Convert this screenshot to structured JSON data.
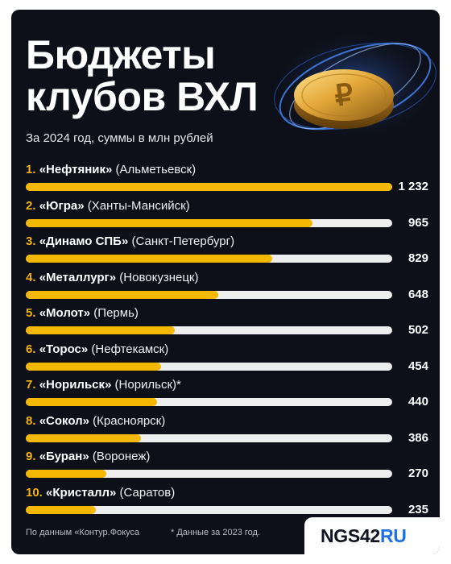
{
  "header": {
    "title_line1": "Бюджеты",
    "title_line2": "клубов ВХЛ",
    "subtitle": "За 2024 год, суммы в млн рублей"
  },
  "colors": {
    "background": "#0d1019",
    "bar": "#f5b800",
    "track": "#eeeeee",
    "rank": "#f4b400"
  },
  "icons": {
    "coin": "ruble-coin-icon"
  },
  "chart_data": {
    "type": "bar",
    "orientation": "horizontal",
    "title": "Бюджеты клубов ВХЛ",
    "subtitle": "За 2024 год, суммы в млн рублей",
    "xlim": [
      0,
      1232
    ],
    "rows": [
      {
        "rank": "1.",
        "club": "«Нефтяник»",
        "city": "(Альметьевск)",
        "value": 1232,
        "value_label": "1 232"
      },
      {
        "rank": "2.",
        "club": "«Югра»",
        "city": "(Ханты-Мансийск)",
        "value": 965,
        "value_label": "965"
      },
      {
        "rank": "3.",
        "club": "«Динамо СПБ»",
        "city": "(Санкт-Петербург)",
        "value": 829,
        "value_label": "829"
      },
      {
        "rank": "4.",
        "club": "«Металлург»",
        "city": "(Новокузнецк)",
        "value": 648,
        "value_label": "648"
      },
      {
        "rank": "5.",
        "club": "«Молот»",
        "city": "(Пермь)",
        "value": 502,
        "value_label": "502"
      },
      {
        "rank": "6.",
        "club": "«Торос»",
        "city": "(Нефтекамск)",
        "value": 454,
        "value_label": "454"
      },
      {
        "rank": "7.",
        "club": "«Норильск»",
        "city": "(Норильск)*",
        "value": 440,
        "value_label": "440"
      },
      {
        "rank": "8.",
        "club": "«Сокол»",
        "city": "(Красноярск)",
        "value": 386,
        "value_label": "386"
      },
      {
        "rank": "9.",
        "club": "«Буран»",
        "city": "(Воронеж)",
        "value": 270,
        "value_label": "270"
      },
      {
        "rank": "10.",
        "club": "«Кристалл»",
        "city": "(Саратов)",
        "value": 235,
        "value_label": "235"
      }
    ]
  },
  "footer": {
    "source": "По данным «Контур.Фокуса",
    "note": "* Данные за 2023 год.",
    "logo_main": "NGS42",
    "logo_suffix": "RU"
  }
}
